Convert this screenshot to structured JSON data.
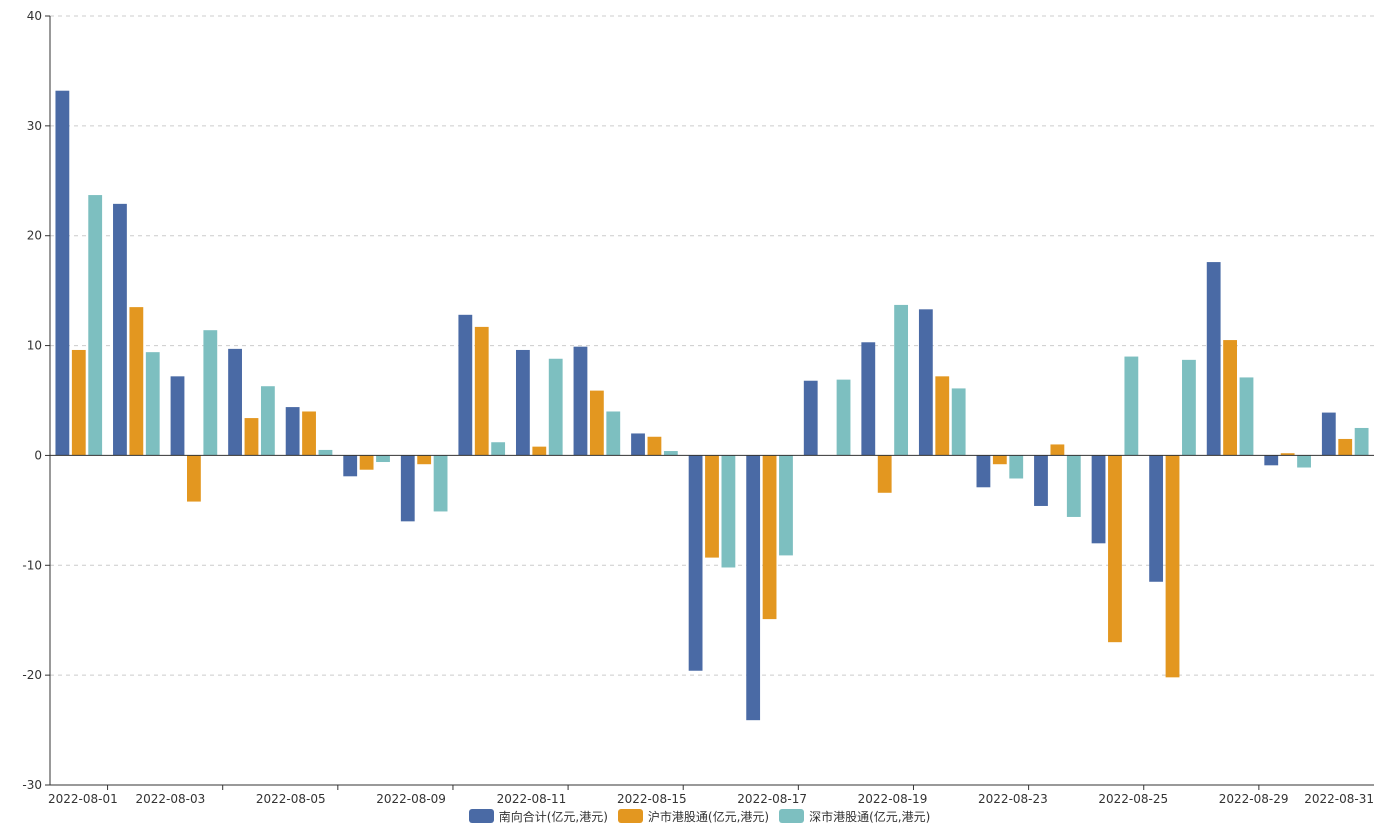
{
  "chart_data": {
    "type": "bar",
    "categories": [
      "2022-08-01",
      "2022-08-02",
      "2022-08-03",
      "2022-08-04",
      "2022-08-05",
      "2022-08-08",
      "2022-08-09",
      "2022-08-10",
      "2022-08-11",
      "2022-08-12",
      "2022-08-15",
      "2022-08-16",
      "2022-08-17",
      "2022-08-18",
      "2022-08-19",
      "2022-08-22",
      "2022-08-23",
      "2022-08-24",
      "2022-08-25",
      "2022-08-26",
      "2022-08-29",
      "2022-08-30",
      "2022-08-31"
    ],
    "x_tick_labels": [
      "2022-08-01",
      "2022-08-03",
      "2022-08-05",
      "2022-08-09",
      "2022-08-11",
      "2022-08-15",
      "2022-08-17",
      "2022-08-19",
      "2022-08-23",
      "2022-08-25",
      "2022-08-29",
      "2022-08-31"
    ],
    "series": [
      {
        "name": "南向合计(亿元,港元)",
        "color": "#4a6aa5",
        "values": [
          33.2,
          22.9,
          7.2,
          9.7,
          4.4,
          -1.9,
          -6.0,
          12.8,
          9.6,
          9.9,
          2.0,
          -19.6,
          -24.1,
          6.8,
          10.3,
          13.3,
          -2.9,
          -4.6,
          -8.0,
          -11.5,
          17.6,
          -0.9,
          3.9
        ]
      },
      {
        "name": "沪市港股通(亿元,港元)",
        "color": "#e39720",
        "values": [
          9.6,
          13.5,
          -4.2,
          3.4,
          4.0,
          -1.3,
          -0.8,
          11.7,
          0.8,
          5.9,
          1.7,
          -9.3,
          -14.9,
          0.0,
          -3.4,
          7.2,
          -0.8,
          1.0,
          -17.0,
          -20.2,
          10.5,
          0.2,
          1.5
        ]
      },
      {
        "name": "深市港股通(亿元,港元)",
        "color": "#7dbfc0",
        "values": [
          23.7,
          9.4,
          11.4,
          6.3,
          0.5,
          -0.6,
          -5.1,
          1.2,
          8.8,
          4.0,
          0.4,
          -10.2,
          -9.1,
          6.9,
          13.7,
          6.1,
          -2.1,
          -5.6,
          9.0,
          8.7,
          7.1,
          -1.1,
          2.5
        ]
      }
    ],
    "ylim": [
      -30,
      40
    ],
    "y_ticks": [
      -30,
      -20,
      -10,
      0,
      10,
      20,
      30,
      40
    ],
    "grid": "horizontal dashed",
    "legend_position": "bottom-center"
  }
}
